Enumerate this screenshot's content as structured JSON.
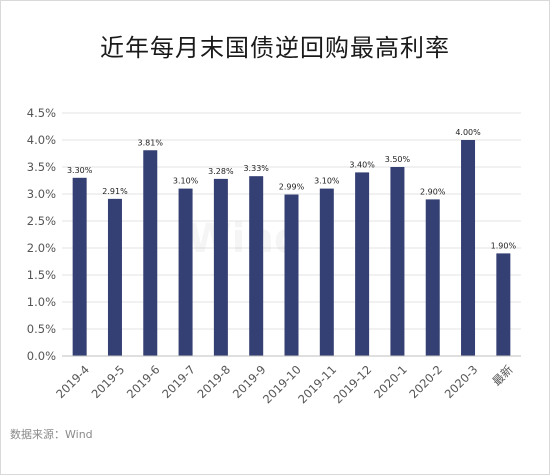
{
  "chart_data": {
    "type": "bar",
    "title": "近年每月末国债逆回购最高利率",
    "categories": [
      "2019-4",
      "2019-5",
      "2019-6",
      "2019-7",
      "2019-8",
      "2019-9",
      "2019-10",
      "2019-11",
      "2019-12",
      "2020-1",
      "2020-2",
      "2020-3",
      "最新"
    ],
    "values": [
      3.3,
      2.91,
      3.81,
      3.1,
      3.28,
      3.33,
      2.99,
      3.1,
      3.4,
      3.5,
      2.9,
      4.0,
      1.9
    ],
    "data_labels": [
      "3.30%",
      "2.91%",
      "3.81%",
      "3.10%",
      "3.28%",
      "3.33%",
      "2.99%",
      "3.10%",
      "3.40%",
      "3.50%",
      "2.90%",
      "4.00%",
      "1.90%"
    ],
    "ylim": [
      0,
      4.5
    ],
    "yticks": [
      0,
      0.5,
      1.0,
      1.5,
      2.0,
      2.5,
      3.0,
      3.5,
      4.0,
      4.5
    ],
    "ytick_labels": [
      "0.0%",
      "0.5%",
      "1.0%",
      "1.5%",
      "2.0%",
      "2.5%",
      "3.0%",
      "3.5%",
      "4.0%",
      "4.5%"
    ],
    "grid": true,
    "bar_color": "#343f73",
    "watermark": "Wind",
    "xlabel": "",
    "ylabel": ""
  },
  "source": "数据来源：Wind"
}
